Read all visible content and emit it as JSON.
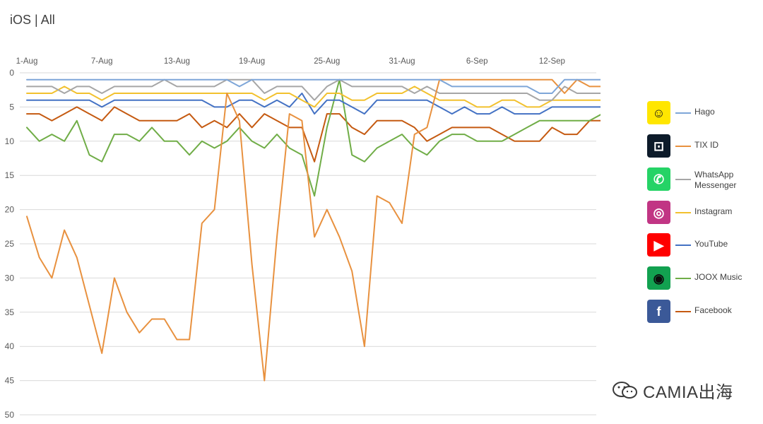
{
  "title": "iOS | All",
  "watermark": "CAMIA出海",
  "chart_data": {
    "type": "line",
    "title": "iOS | All",
    "xlabel": "",
    "ylabel": "",
    "y_inverted": true,
    "ylim": [
      0,
      50
    ],
    "y_ticks": [
      0,
      5,
      10,
      15,
      20,
      25,
      30,
      35,
      40,
      45,
      50
    ],
    "x": [
      "1-Aug",
      "2-Aug",
      "3-Aug",
      "4-Aug",
      "5-Aug",
      "6-Aug",
      "7-Aug",
      "8-Aug",
      "9-Aug",
      "10-Aug",
      "11-Aug",
      "12-Aug",
      "13-Aug",
      "14-Aug",
      "15-Aug",
      "16-Aug",
      "17-Aug",
      "18-Aug",
      "19-Aug",
      "20-Aug",
      "21-Aug",
      "22-Aug",
      "23-Aug",
      "24-Aug",
      "25-Aug",
      "26-Aug",
      "27-Aug",
      "28-Aug",
      "29-Aug",
      "30-Aug",
      "31-Aug",
      "1-Sep",
      "2-Sep",
      "3-Sep",
      "4-Sep",
      "5-Sep",
      "6-Sep",
      "7-Sep",
      "8-Sep",
      "9-Sep",
      "10-Sep",
      "11-Sep",
      "12-Sep",
      "13-Sep",
      "14-Sep",
      "15-Sep",
      "16-Sep"
    ],
    "x_tick_labels": [
      "1-Aug",
      "7-Aug",
      "13-Aug",
      "19-Aug",
      "25-Aug",
      "31-Aug",
      "6-Sep",
      "12-Sep"
    ],
    "legend_position": "right",
    "grid": true,
    "series": [
      {
        "name": "Hago",
        "color": "#7ea6d8",
        "icon": "hago-icon",
        "icon_bg": "#ffe600",
        "icon_fg": "#1a1a1a",
        "icon_glyph": "☺",
        "values": [
          1,
          1,
          1,
          1,
          1,
          1,
          1,
          1,
          1,
          1,
          1,
          1,
          1,
          1,
          1,
          1,
          1,
          2,
          1,
          1,
          1,
          1,
          1,
          1,
          1,
          1,
          1,
          1,
          1,
          1,
          1,
          1,
          1,
          1,
          2,
          2,
          2,
          2,
          2,
          2,
          2,
          3,
          3,
          1,
          1,
          1,
          1
        ]
      },
      {
        "name": "TIX ID",
        "color": "#e8913f",
        "icon": "tix-id-icon",
        "icon_bg": "#0d1b2a",
        "icon_fg": "#ffffff",
        "icon_glyph": "⊡",
        "values": [
          21,
          27,
          30,
          23,
          27,
          34,
          41,
          30,
          35,
          38,
          36,
          36,
          39,
          39,
          22,
          20,
          3,
          7,
          28,
          45,
          24,
          6,
          7,
          24,
          20,
          24,
          29,
          40,
          18,
          19,
          22,
          9,
          8,
          1,
          1,
          1,
          1,
          1,
          1,
          1,
          1,
          1,
          1,
          3,
          1,
          2,
          2
        ]
      },
      {
        "name": "WhatsApp Messenger",
        "color": "#a6a6a6",
        "icon": "whatsapp-icon",
        "icon_bg": "#25d366",
        "icon_fg": "#ffffff",
        "icon_glyph": "✆",
        "values": [
          2,
          2,
          2,
          3,
          2,
          2,
          3,
          2,
          2,
          2,
          2,
          1,
          2,
          2,
          2,
          2,
          1,
          1,
          1,
          3,
          2,
          2,
          2,
          4,
          2,
          1,
          2,
          2,
          2,
          2,
          2,
          3,
          2,
          3,
          3,
          3,
          3,
          3,
          3,
          3,
          3,
          4,
          4,
          2,
          3,
          3,
          3
        ]
      },
      {
        "name": "Instagram",
        "color": "#f2c12e",
        "icon": "instagram-icon",
        "icon_bg": "#c13584",
        "icon_fg": "#ffffff",
        "icon_glyph": "◎",
        "values": [
          3,
          3,
          3,
          2,
          3,
          3,
          4,
          3,
          3,
          3,
          3,
          3,
          3,
          3,
          3,
          3,
          3,
          3,
          3,
          4,
          3,
          3,
          4,
          5,
          3,
          3,
          4,
          4,
          3,
          3,
          3,
          2,
          3,
          4,
          4,
          4,
          5,
          5,
          4,
          4,
          5,
          5,
          4,
          4,
          4,
          4,
          4
        ]
      },
      {
        "name": "YouTube",
        "color": "#4472c4",
        "icon": "youtube-icon",
        "icon_bg": "#ff0000",
        "icon_fg": "#ffffff",
        "icon_glyph": "▶",
        "values": [
          4,
          4,
          4,
          4,
          4,
          4,
          5,
          4,
          4,
          4,
          4,
          4,
          4,
          4,
          4,
          5,
          5,
          4,
          4,
          5,
          4,
          5,
          3,
          6,
          4,
          4,
          5,
          6,
          4,
          4,
          4,
          4,
          4,
          5,
          6,
          5,
          6,
          6,
          5,
          6,
          6,
          6,
          5,
          5,
          5,
          5,
          5
        ]
      },
      {
        "name": "JOOX Music",
        "color": "#70ad47",
        "icon": "joox-music-icon",
        "icon_bg": "#12a150",
        "icon_fg": "#0b0b0b",
        "icon_glyph": "◉",
        "values": [
          8,
          10,
          9,
          10,
          7,
          12,
          13,
          9,
          9,
          10,
          8,
          10,
          10,
          12,
          10,
          11,
          10,
          8,
          10,
          11,
          9,
          11,
          12,
          18,
          8,
          1,
          12,
          13,
          11,
          10,
          9,
          11,
          12,
          10,
          9,
          9,
          10,
          10,
          10,
          9,
          8,
          7,
          7,
          7,
          7,
          7,
          6
        ]
      },
      {
        "name": "Facebook",
        "color": "#c55a11",
        "icon": "facebook-icon",
        "icon_bg": "#3b5998",
        "icon_fg": "#ffffff",
        "icon_glyph": "f",
        "values": [
          6,
          6,
          7,
          6,
          5,
          6,
          7,
          5,
          6,
          7,
          7,
          7,
          7,
          6,
          8,
          7,
          8,
          6,
          8,
          6,
          7,
          8,
          8,
          13,
          6,
          6,
          8,
          9,
          7,
          7,
          7,
          8,
          10,
          9,
          8,
          8,
          8,
          8,
          9,
          10,
          10,
          10,
          8,
          9,
          9,
          7,
          7
        ]
      }
    ]
  }
}
